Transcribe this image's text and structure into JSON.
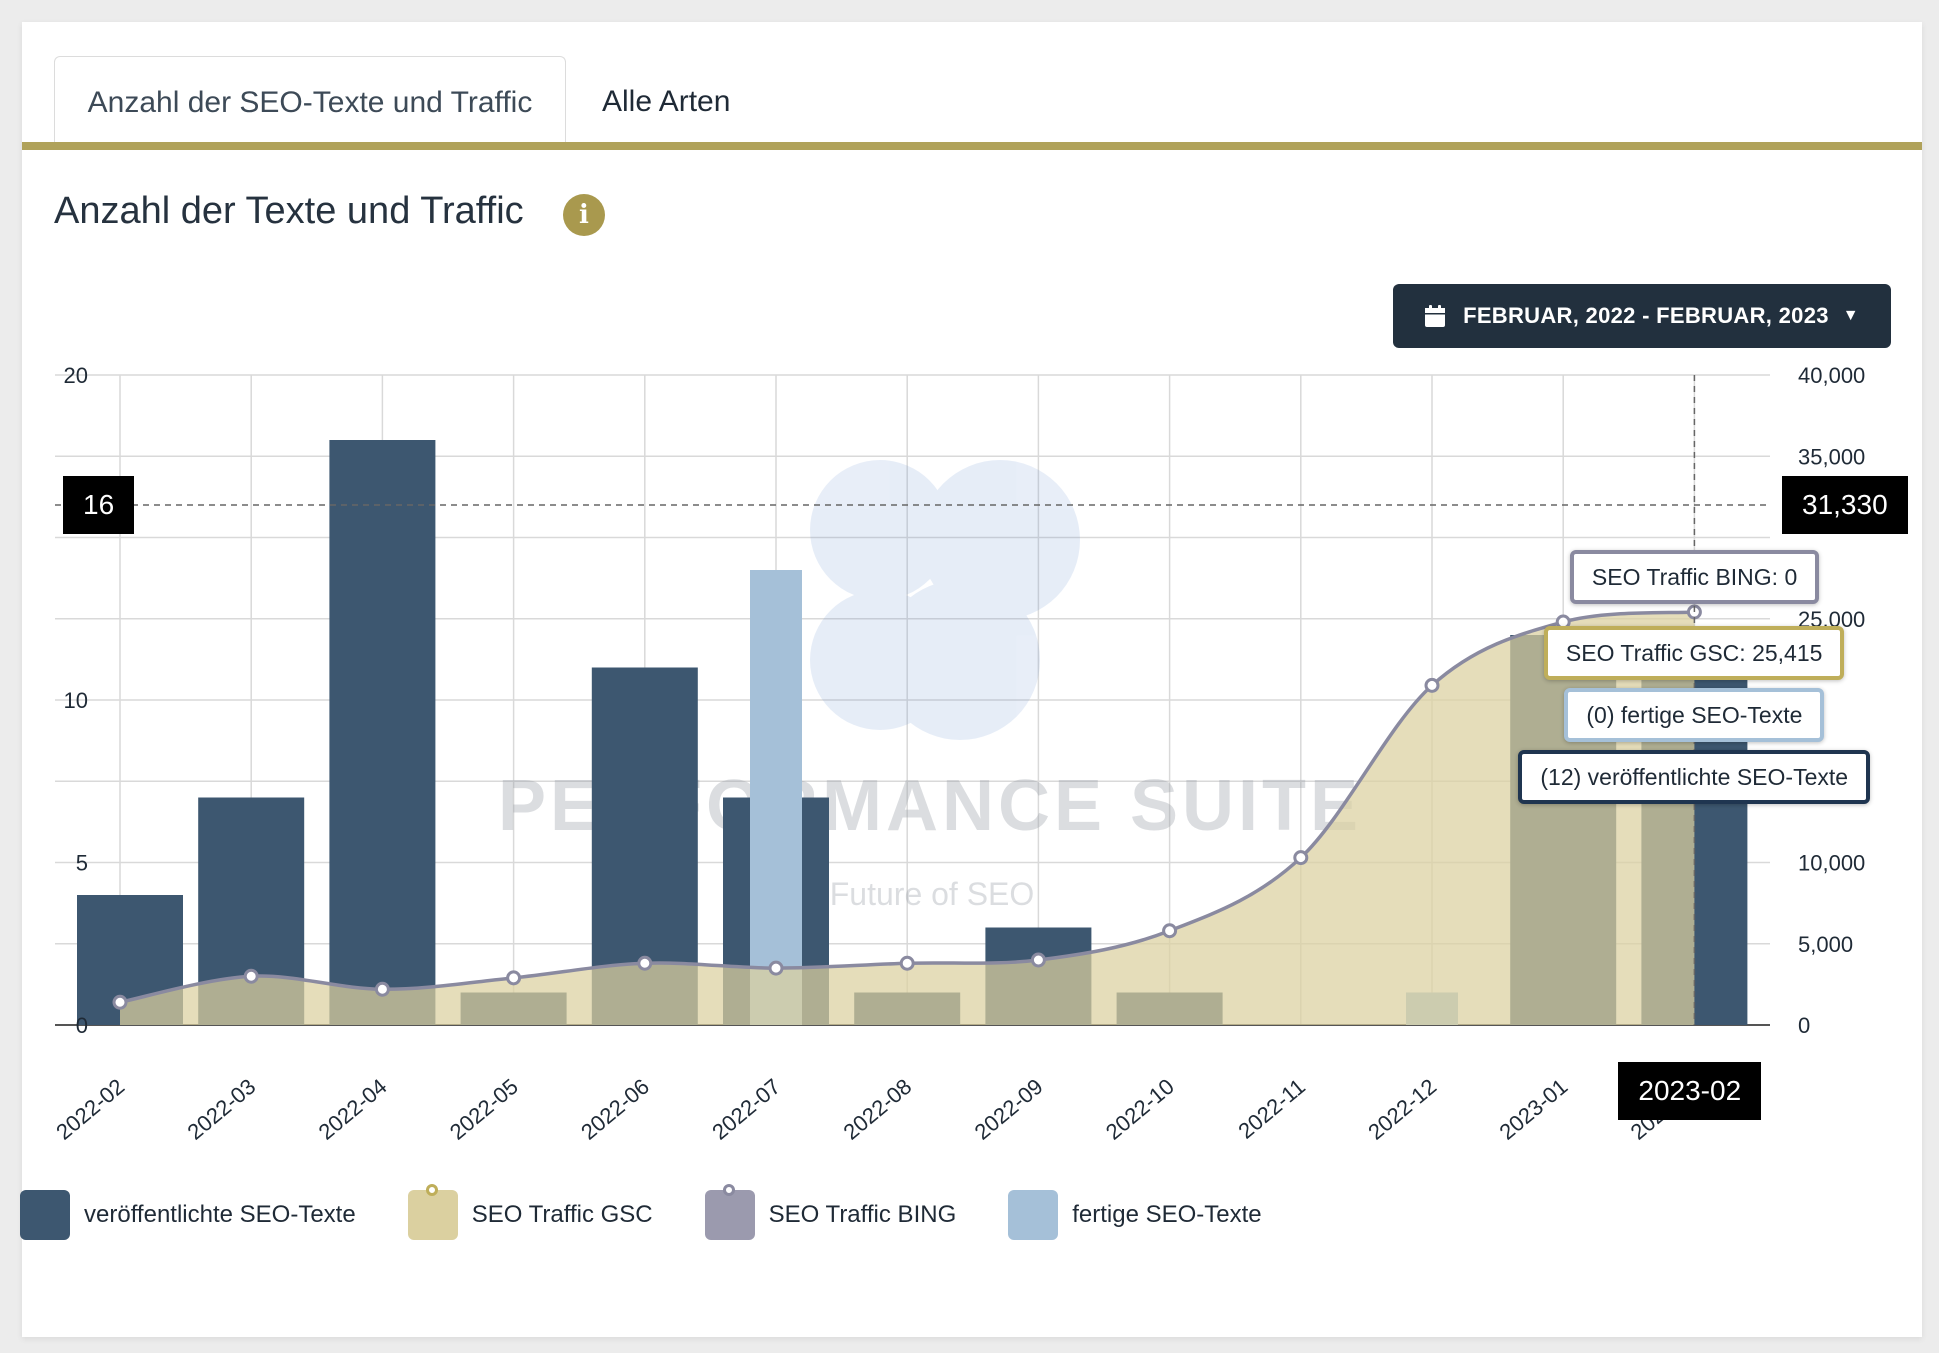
{
  "tabs": [
    {
      "label": "Anzahl der SEO-Texte und Traffic",
      "active": true
    },
    {
      "label": "Alle Arten",
      "active": false
    }
  ],
  "header": {
    "title": "Anzahl der Texte und Traffic",
    "info_icon": "info-icon"
  },
  "date_range": {
    "label": "FEBRUAR, 2022 - FEBRUAR, 2023",
    "icon": "calendar-icon"
  },
  "watermark": {
    "title": "Performance Suite",
    "subtitle": "The Future of SEO"
  },
  "crosshair": {
    "left_value": "16",
    "right_value": "31,330",
    "x_value": "2023-02"
  },
  "tooltip": [
    {
      "text": "SEO Traffic BING: 0",
      "color": "#8a8aa0"
    },
    {
      "text": "SEO Traffic GSC: 25,415",
      "color": "#bfae5a"
    },
    {
      "text": "(0) fertige SEO-Texte",
      "color": "#a5c0d8"
    },
    {
      "text": "(12) veröffentlichte SEO-Texte",
      "color": "#1f3550"
    }
  ],
  "legend": [
    {
      "label": "veröffentlichte SEO-Texte",
      "color": "#3d5770",
      "marker": false
    },
    {
      "label": "SEO Traffic GSC",
      "color": "#dbd0a0",
      "marker": true,
      "marker_color": "#bfae5a"
    },
    {
      "label": "SEO Traffic BING",
      "color": "#9b9aae",
      "marker": true,
      "marker_color": "#8a8aa0"
    },
    {
      "label": "fertige SEO-Texte",
      "color": "#a5c0d8",
      "marker": false
    }
  ],
  "chart_data": {
    "type": "bar",
    "categories": [
      "2022-02",
      "2022-03",
      "2022-04",
      "2022-05",
      "2022-06",
      "2022-07",
      "2022-08",
      "2022-09",
      "2022-10",
      "2022-11",
      "2022-12",
      "2023-01",
      "2023-02"
    ],
    "y_left": {
      "range": [
        0,
        20
      ],
      "ticks": [
        "0",
        "5",
        "10",
        "20"
      ],
      "tick_values": [
        0,
        5,
        10,
        20
      ]
    },
    "y_right": {
      "range": [
        0,
        40000
      ],
      "ticks": [
        "0",
        "5,000",
        "10,000",
        "25,000",
        "35,000",
        "40,000"
      ],
      "tick_values": [
        0,
        5000,
        10000,
        25000,
        35000,
        40000
      ]
    },
    "grid": true,
    "legend_position": "bottom-left",
    "series": [
      {
        "name": "veröffentlichte SEO-Texte",
        "type": "bar",
        "axis": "left",
        "color": "#3d5770",
        "values": [
          4,
          7,
          18,
          1,
          11,
          7,
          1,
          3,
          1,
          0,
          0,
          12,
          12
        ]
      },
      {
        "name": "fertige SEO-Texte",
        "type": "bar",
        "axis": "left",
        "color": "#a5c0d8",
        "values": [
          0,
          0,
          0,
          0,
          0,
          14,
          0,
          0,
          0,
          0,
          1,
          0,
          0
        ]
      },
      {
        "name": "SEO Traffic GSC",
        "type": "area",
        "axis": "right",
        "color": "#dbd0a0",
        "values": [
          1400,
          3000,
          2200,
          2900,
          3800,
          3500,
          3800,
          4000,
          5800,
          10300,
          20900,
          24800,
          25415
        ]
      },
      {
        "name": "SEO Traffic BING",
        "type": "line",
        "axis": "right",
        "color": "#8a8aa0",
        "values": [
          0,
          0,
          0,
          0,
          0,
          0,
          0,
          0,
          0,
          0,
          0,
          0,
          0
        ]
      }
    ]
  }
}
